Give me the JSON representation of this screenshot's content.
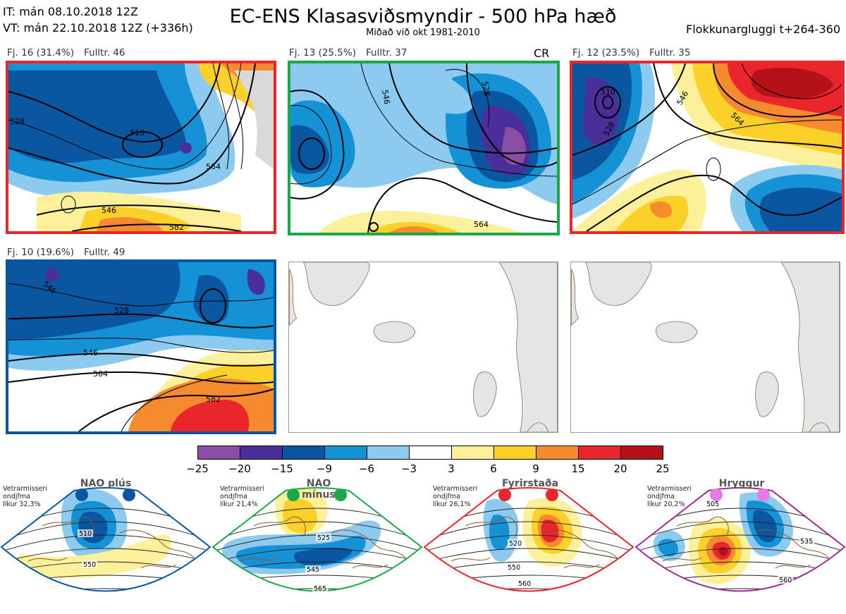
{
  "header": {
    "it_line": "IT: mán 08.10.2018 12Z",
    "vt_line": "VT: mán 22.10.2018 12Z  (+336h)",
    "title": "EC-ENS Klasasviðsmyndir - 500 hPa hæð",
    "subtitle": "Miðað við okt 1981-2010",
    "window": "Flokkunargluggi t+264-360"
  },
  "clusters": [
    {
      "fj": "Fj. 16 (31.4%)",
      "fulltr": "Fulltr. 46",
      "tag": "",
      "border": "#e8262b",
      "contours": [
        "510",
        "528",
        "546",
        "564",
        "582"
      ]
    },
    {
      "fj": "Fj. 13 (25.5%)",
      "fulltr": "Fulltr. 37",
      "tag": "CR",
      "border": "#1aa84a",
      "contours": [
        "546",
        "528",
        "564"
      ]
    },
    {
      "fj": "Fj. 12 (23.5%)",
      "fulltr": "Fulltr. 35",
      "tag": "",
      "border": "#e8262b",
      "contours": [
        "510",
        "528",
        "546",
        "564"
      ]
    },
    {
      "fj": "Fj. 10 (19.6%)",
      "fulltr": "Fulltr. 49",
      "tag": "",
      "border": "#0a56a0",
      "contours": [
        "546",
        "528",
        "546",
        "564",
        "582"
      ]
    }
  ],
  "colorbar": {
    "ticks": [
      "−25",
      "−20",
      "−15",
      "−9",
      "−6",
      "−3",
      "3",
      "6",
      "9",
      "15",
      "20",
      "25"
    ],
    "colors": [
      "#8b4ea6",
      "#4a2f9a",
      "#0a56a0",
      "#1591d6",
      "#8ccaf0",
      "#ffffff",
      "#fdf09b",
      "#fbd028",
      "#f68a2e",
      "#e8262b",
      "#b51119"
    ]
  },
  "regimes": [
    {
      "name": "NAO plús",
      "note": [
        "Vetrarmisseri",
        "ondjfma",
        "líkur 32,3%"
      ],
      "color": "#0a56a0",
      "contours": [
        "510",
        "550"
      ]
    },
    {
      "name": "NAO mínus",
      "note": [
        "Vetrarmisseri",
        "ondjfma",
        "líkur 21,4%"
      ],
      "color": "#1aa84a",
      "contours": [
        "525",
        "545",
        "565"
      ]
    },
    {
      "name": "Fyrirstaða",
      "note": [
        "Vetrarmisseri",
        "ondjfma",
        "líkur 26,1%"
      ],
      "color": "#e8262b",
      "contours": [
        "520",
        "550",
        "560"
      ]
    },
    {
      "name": "Hryggur",
      "note": [
        "Vetrarmisseri",
        "ondjfma",
        "líkur 20,2%"
      ],
      "color": "#9b2d8e",
      "dot_color": "#e879e8",
      "contours": [
        "505",
        "535",
        "560"
      ]
    }
  ]
}
